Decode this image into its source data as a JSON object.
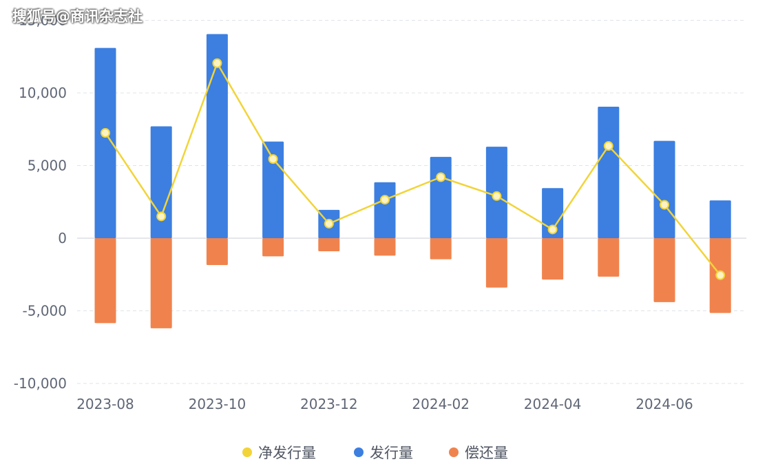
{
  "watermark": "搜狐号@商讯杂志社",
  "chart_data": {
    "type": "bar",
    "categories": [
      "2023-08",
      "2023-09",
      "2023-10",
      "2023-11",
      "2023-12",
      "2024-01",
      "2024-02",
      "2024-03",
      "2024-04",
      "2024-05",
      "2024-06",
      "2024-07"
    ],
    "x_tick_labels": [
      "2023-08",
      "2023-10",
      "2023-12",
      "2024-02",
      "2024-04",
      "2024-06"
    ],
    "y_tick_labels": [
      "-10,000",
      "-5,000",
      "0",
      "5,000",
      "10,000",
      "15,000"
    ],
    "y_ticks": [
      -10000,
      -5000,
      0,
      5000,
      10000,
      15000
    ],
    "ylim": [
      -10000,
      15000
    ],
    "grid": true,
    "legend_position": "bottom-center",
    "series": [
      {
        "name": "净发行量",
        "type": "line",
        "color": "#f2d438",
        "values": [
          7250,
          1500,
          12050,
          5450,
          1000,
          2650,
          4200,
          2900,
          600,
          6350,
          2300,
          -2550
        ]
      },
      {
        "name": "发行量",
        "type": "bar",
        "color": "#3c7fe0",
        "values": [
          13100,
          7700,
          14050,
          6650,
          1950,
          3850,
          5600,
          6300,
          3450,
          9050,
          6700,
          2600
        ]
      },
      {
        "name": "偿还量",
        "type": "bar",
        "color": "#f0834d",
        "values": [
          -5850,
          -6200,
          -1850,
          -1250,
          -900,
          -1200,
          -1450,
          -3400,
          -2850,
          -2650,
          -4400,
          -5150
        ]
      }
    ]
  }
}
